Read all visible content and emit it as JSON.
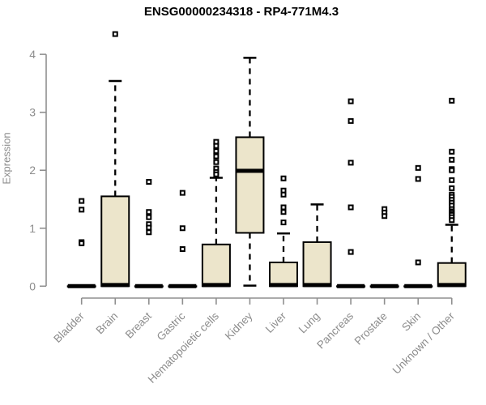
{
  "chart_data": {
    "type": "box",
    "title": "ENSG00000234318 - RP4-771M4.3",
    "ylabel": "Expression",
    "xlabel": "",
    "ylim": [
      0,
      4.45
    ],
    "yticks": [
      0,
      1,
      2,
      3,
      4
    ],
    "grid": false,
    "legend": false,
    "categories": [
      "Bladder",
      "Brain",
      "Breast",
      "Gastric",
      "Hematopoietic cells",
      "Kidney",
      "Liver",
      "Lung",
      "Pancreas",
      "Prostate",
      "Skin",
      "Unknown / Other"
    ],
    "boxes": [
      {
        "category": "Bladder",
        "q1": 0,
        "median": 0,
        "q3": 0,
        "whisker_low": 0,
        "whisker_high": 0,
        "outliers": [
          1.47,
          1.32,
          0.76,
          0.74
        ]
      },
      {
        "category": "Brain",
        "q1": 0,
        "median": 0.02,
        "q3": 1.55,
        "whisker_low": 0,
        "whisker_high": 3.54,
        "outliers": [
          4.35
        ]
      },
      {
        "category": "Breast",
        "q1": 0,
        "median": 0,
        "q3": 0,
        "whisker_low": 0,
        "whisker_high": 0,
        "outliers": [
          1.8,
          1.28,
          1.19,
          1.07,
          1.01,
          0.93
        ]
      },
      {
        "category": "Gastric",
        "q1": 0,
        "median": 0,
        "q3": 0,
        "whisker_low": 0,
        "whisker_high": 0,
        "outliers": [
          1.61,
          1.0,
          0.64
        ]
      },
      {
        "category": "Hematopoietic cells",
        "q1": 0,
        "median": 0.02,
        "q3": 0.72,
        "whisker_low": 0,
        "whisker_high": 1.87,
        "outliers": [
          2.49,
          2.42,
          2.33,
          2.24,
          2.14,
          2.03,
          1.97,
          1.93
        ]
      },
      {
        "category": "Kidney",
        "q1": 0.92,
        "median": 1.99,
        "q3": 2.57,
        "whisker_low": 0.01,
        "whisker_high": 3.94,
        "outliers": []
      },
      {
        "category": "Liver",
        "q1": 0,
        "median": 0.02,
        "q3": 0.41,
        "whisker_low": 0,
        "whisker_high": 0.91,
        "outliers": [
          1.86,
          1.65,
          1.58,
          1.36,
          1.28,
          1.1
        ]
      },
      {
        "category": "Lung",
        "q1": 0,
        "median": 0.02,
        "q3": 0.76,
        "whisker_low": 0,
        "whisker_high": 1.41,
        "outliers": []
      },
      {
        "category": "Pancreas",
        "q1": 0,
        "median": 0,
        "q3": 0,
        "whisker_low": 0,
        "whisker_high": 0,
        "outliers": [
          3.19,
          2.85,
          2.13,
          1.36,
          0.59
        ]
      },
      {
        "category": "Prostate",
        "q1": 0,
        "median": 0,
        "q3": 0,
        "whisker_low": 0,
        "whisker_high": 0,
        "outliers": [
          1.33,
          1.27,
          1.21
        ]
      },
      {
        "category": "Skin",
        "q1": 0,
        "median": 0,
        "q3": 0,
        "whisker_low": 0,
        "whisker_high": 0,
        "outliers": [
          2.04,
          1.85,
          0.41
        ]
      },
      {
        "category": "Unknown / Other",
        "q1": 0,
        "median": 0.02,
        "q3": 0.4,
        "whisker_low": 0,
        "whisker_high": 1.06,
        "outliers": [
          3.2,
          2.32,
          2.18,
          2.02,
          2.0,
          1.83,
          1.69,
          1.58,
          1.54,
          1.49,
          1.44,
          1.39,
          1.33,
          1.29,
          1.26,
          1.23,
          1.19,
          1.14
        ]
      }
    ],
    "colors": {
      "box_fill": "#ECE5CB",
      "box_stroke": "#000000",
      "median": "#000000",
      "whisker": "#000000",
      "outlier_stroke": "#000000",
      "outlier_fill": "#ffffff",
      "axis": "#8f8f8f",
      "tick_text": "#8c8c8c",
      "title_text": "#000000",
      "background": "#ffffff"
    }
  }
}
